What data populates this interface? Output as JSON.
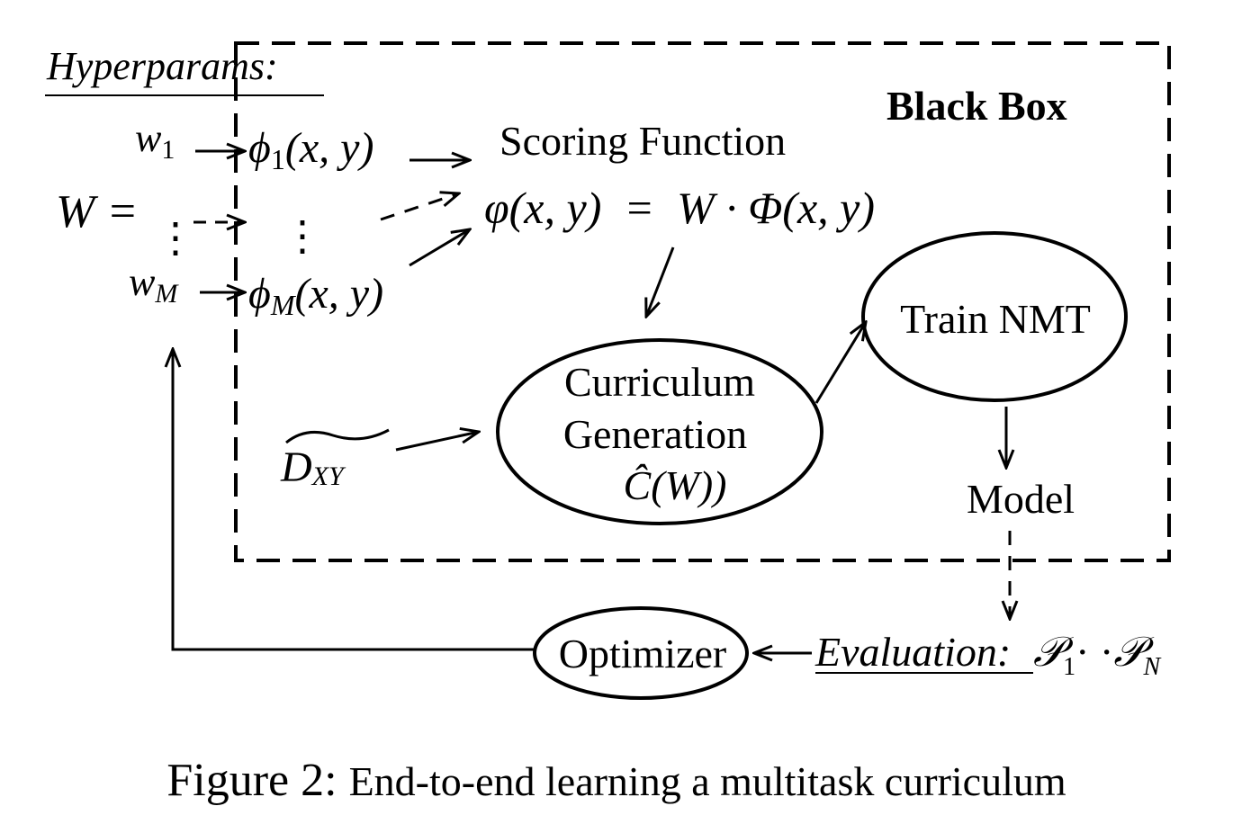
{
  "hyperparams": {
    "heading": "Hyperparams:",
    "w_lhs": "W =",
    "w1": "w",
    "w1_sub": "1",
    "wM": "w",
    "wM_sub": "M",
    "vdots": "⋮"
  },
  "features": {
    "phi1": "ϕ",
    "phi1_sub": "1",
    "phi1_args": "(x, y)",
    "vdots": "⋮",
    "phiM": "ϕ",
    "phiM_sub": "M",
    "phiM_args": "(x, y)"
  },
  "black_box": {
    "title": "Black Box"
  },
  "scoring": {
    "title": "Scoring Function",
    "formula": "φ(x, y)  =  W · Φ(x, y)"
  },
  "data": {
    "symbol": "D",
    "subscript": "XY"
  },
  "curriculum": {
    "line1": "Curriculum",
    "line2": "Generation",
    "line3": "Ĉ(W))"
  },
  "train": {
    "label": "Train NMT"
  },
  "model": {
    "label": "Model"
  },
  "evaluation": {
    "label": "Evaluation:",
    "p1": "𝒫",
    "p1_sub": "1",
    "dots": "· ·",
    "pN": "𝒫",
    "pN_sub": "N"
  },
  "optimizer": {
    "label": "Optimizer"
  },
  "caption": {
    "prefix": "Figure 2:",
    "text": "End-to-end learning a multitask curriculum"
  }
}
